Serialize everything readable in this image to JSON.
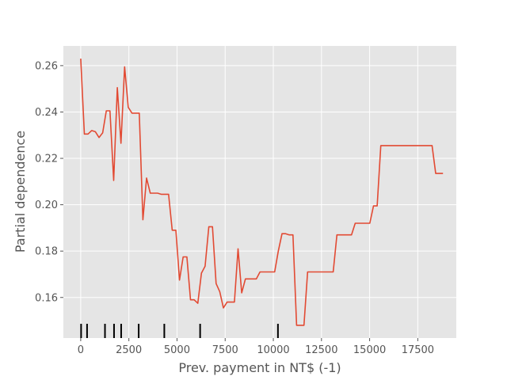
{
  "chart_data": {
    "type": "line",
    "title": "",
    "xlabel": "Prev. payment in NT$ (-1)",
    "ylabel": "Partial dependence",
    "xlim": [
      -900,
      19500
    ],
    "ylim": [
      0.1425,
      0.2685
    ],
    "xticks": [
      0,
      2500,
      5000,
      7500,
      10000,
      12500,
      15000,
      17500
    ],
    "xtick_labels": [
      "0",
      "2500",
      "5000",
      "7500",
      "10000",
      "12500",
      "15000",
      "17500"
    ],
    "yticks": [
      0.16,
      0.18,
      0.2,
      0.22,
      0.24,
      0.26
    ],
    "ytick_labels": [
      "0.16",
      "0.18",
      "0.20",
      "0.22",
      "0.24",
      "0.26"
    ],
    "grid": true,
    "colors": {
      "line": "#e24a33",
      "plot_bg": "#e5e5e5",
      "grid": "#ffffff",
      "rug": "#000000"
    },
    "series": [
      {
        "values": [
          [
            0,
            0.263
          ],
          [
            190,
            0.2305
          ],
          [
            380,
            0.2305
          ],
          [
            570,
            0.232
          ],
          [
            760,
            0.2315
          ],
          [
            950,
            0.229
          ],
          [
            1140,
            0.231
          ],
          [
            1330,
            0.2405
          ],
          [
            1520,
            0.2405
          ],
          [
            1710,
            0.2105
          ],
          [
            1900,
            0.2505
          ],
          [
            2090,
            0.2265
          ],
          [
            2280,
            0.2595
          ],
          [
            2470,
            0.242
          ],
          [
            2660,
            0.2395
          ],
          [
            2850,
            0.2395
          ],
          [
            3040,
            0.2395
          ],
          [
            3230,
            0.1935
          ],
          [
            3420,
            0.2115
          ],
          [
            3610,
            0.205
          ],
          [
            3800,
            0.205
          ],
          [
            3990,
            0.205
          ],
          [
            4180,
            0.2045
          ],
          [
            4370,
            0.2045
          ],
          [
            4560,
            0.2045
          ],
          [
            4750,
            0.189
          ],
          [
            4940,
            0.189
          ],
          [
            5130,
            0.1675
          ],
          [
            5320,
            0.1775
          ],
          [
            5510,
            0.1775
          ],
          [
            5700,
            0.159
          ],
          [
            5890,
            0.159
          ],
          [
            6080,
            0.1575
          ],
          [
            6270,
            0.1705
          ],
          [
            6460,
            0.1735
          ],
          [
            6650,
            0.1905
          ],
          [
            6840,
            0.1905
          ],
          [
            7030,
            0.166
          ],
          [
            7220,
            0.1625
          ],
          [
            7410,
            0.1555
          ],
          [
            7600,
            0.158
          ],
          [
            7790,
            0.158
          ],
          [
            7980,
            0.158
          ],
          [
            8170,
            0.181
          ],
          [
            8360,
            0.162
          ],
          [
            8550,
            0.168
          ],
          [
            8740,
            0.168
          ],
          [
            8930,
            0.168
          ],
          [
            9120,
            0.168
          ],
          [
            9310,
            0.171
          ],
          [
            9500,
            0.171
          ],
          [
            9690,
            0.171
          ],
          [
            9880,
            0.171
          ],
          [
            10070,
            0.171
          ],
          [
            10260,
            0.18
          ],
          [
            10450,
            0.1875
          ],
          [
            10640,
            0.1875
          ],
          [
            10830,
            0.187
          ],
          [
            11020,
            0.187
          ],
          [
            11210,
            0.148
          ],
          [
            11400,
            0.148
          ],
          [
            11590,
            0.148
          ],
          [
            11780,
            0.171
          ],
          [
            11970,
            0.171
          ],
          [
            12160,
            0.171
          ],
          [
            12350,
            0.171
          ],
          [
            12540,
            0.171
          ],
          [
            12730,
            0.171
          ],
          [
            12920,
            0.171
          ],
          [
            13110,
            0.171
          ],
          [
            13300,
            0.187
          ],
          [
            13490,
            0.187
          ],
          [
            13680,
            0.187
          ],
          [
            13870,
            0.187
          ],
          [
            14060,
            0.187
          ],
          [
            14250,
            0.192
          ],
          [
            14440,
            0.192
          ],
          [
            14630,
            0.192
          ],
          [
            14820,
            0.192
          ],
          [
            15010,
            0.192
          ],
          [
            15200,
            0.1995
          ],
          [
            15390,
            0.1995
          ],
          [
            15580,
            0.2255
          ],
          [
            15770,
            0.2255
          ],
          [
            15960,
            0.2255
          ],
          [
            16150,
            0.2255
          ],
          [
            16340,
            0.2255
          ],
          [
            16530,
            0.2255
          ],
          [
            16720,
            0.2255
          ],
          [
            16910,
            0.2255
          ],
          [
            17100,
            0.2255
          ],
          [
            17290,
            0.2255
          ],
          [
            17480,
            0.2255
          ],
          [
            17670,
            0.2255
          ],
          [
            17860,
            0.2255
          ],
          [
            18050,
            0.2255
          ],
          [
            18240,
            0.2255
          ],
          [
            18430,
            0.2135
          ],
          [
            18620,
            0.2135
          ],
          [
            18810,
            0.2135
          ]
        ]
      }
    ],
    "rug_x": [
      20,
      330,
      1260,
      1730,
      2100,
      3010,
      4340,
      6200,
      10240
    ]
  }
}
